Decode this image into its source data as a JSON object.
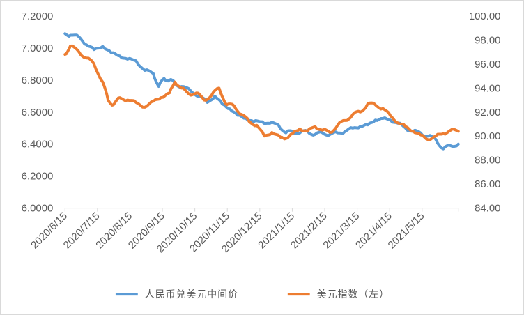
{
  "chart_data": {
    "type": "line",
    "title": "",
    "x_ticks": [
      "2020/6/15",
      "2020/7/15",
      "2020/8/15",
      "2020/9/15",
      "2020/10/15",
      "2020/11/15",
      "2020/12/15",
      "2021/1/15",
      "2021/2/15",
      "2021/3/15",
      "2021/4/15",
      "2021/5/15"
    ],
    "left_axis": {
      "ticks": [
        "6.0000",
        "6.2000",
        "6.4000",
        "6.6000",
        "6.8000",
        "7.0000",
        "7.2000"
      ],
      "min": 6.0,
      "max": 7.2
    },
    "right_axis": {
      "ticks": [
        "84.00",
        "86.00",
        "88.00",
        "90.00",
        "92.00",
        "94.00",
        "96.00",
        "98.00",
        "100.00"
      ],
      "min": 84,
      "max": 100
    },
    "legend_position": "bottom",
    "grid": false,
    "series": [
      {
        "name": "人民币兑美元中间价",
        "axis": "left",
        "color": "#5B9BD5",
        "x": [
          "2020-06-15",
          "2020-06-20",
          "2020-06-28",
          "2020-07-05",
          "2020-07-12",
          "2020-07-20",
          "2020-07-28",
          "2020-08-05",
          "2020-08-12",
          "2020-08-20",
          "2020-08-28",
          "2020-09-05",
          "2020-09-10",
          "2020-09-15",
          "2020-09-20",
          "2020-09-25",
          "2020-10-01",
          "2020-10-10",
          "2020-10-18",
          "2020-10-25",
          "2020-11-01",
          "2020-11-08",
          "2020-11-15",
          "2020-11-22",
          "2020-11-30",
          "2020-12-07",
          "2020-12-15",
          "2020-12-22",
          "2020-12-30",
          "2021-01-06",
          "2021-01-12",
          "2021-01-19",
          "2021-01-26",
          "2021-02-02",
          "2021-02-09",
          "2021-02-16",
          "2021-02-23",
          "2021-03-02",
          "2021-03-09",
          "2021-03-16",
          "2021-03-23",
          "2021-03-30",
          "2021-04-06",
          "2021-04-13",
          "2021-04-20",
          "2021-04-27",
          "2021-05-04",
          "2021-05-11",
          "2021-05-18",
          "2021-05-25",
          "2021-06-01",
          "2021-06-08",
          "2021-06-15"
        ],
        "values": [
          7.09,
          7.08,
          7.07,
          7.02,
          6.99,
          7.01,
          6.97,
          6.95,
          6.93,
          6.92,
          6.86,
          6.84,
          6.76,
          6.81,
          6.8,
          6.78,
          6.76,
          6.73,
          6.7,
          6.66,
          6.7,
          6.65,
          6.62,
          6.58,
          6.56,
          6.54,
          6.54,
          6.53,
          6.52,
          6.47,
          6.48,
          6.47,
          6.48,
          6.46,
          6.47,
          6.46,
          6.47,
          6.48,
          6.5,
          6.51,
          6.52,
          6.55,
          6.56,
          6.55,
          6.53,
          6.5,
          6.48,
          6.47,
          6.45,
          6.43,
          6.37,
          6.39,
          6.4
        ]
      },
      {
        "name": "美元指数（左）",
        "axis": "right",
        "color": "#ED7D31",
        "x": [
          "2020-06-15",
          "2020-06-20",
          "2020-06-28",
          "2020-07-05",
          "2020-07-12",
          "2020-07-20",
          "2020-07-25",
          "2020-07-30",
          "2020-08-05",
          "2020-08-12",
          "2020-08-20",
          "2020-08-28",
          "2020-09-05",
          "2020-09-12",
          "2020-09-20",
          "2020-09-25",
          "2020-10-01",
          "2020-10-08",
          "2020-10-15",
          "2020-10-22",
          "2020-10-29",
          "2020-11-05",
          "2020-11-12",
          "2020-11-19",
          "2020-11-26",
          "2020-12-03",
          "2020-12-10",
          "2020-12-17",
          "2020-12-24",
          "2021-01-01",
          "2021-01-06",
          "2021-01-12",
          "2021-01-19",
          "2021-01-26",
          "2021-02-02",
          "2021-02-09",
          "2021-02-16",
          "2021-02-23",
          "2021-03-02",
          "2021-03-09",
          "2021-03-16",
          "2021-03-23",
          "2021-03-30",
          "2021-04-06",
          "2021-04-13",
          "2021-04-20",
          "2021-04-27",
          "2021-05-04",
          "2021-05-11",
          "2021-05-18",
          "2021-05-25",
          "2021-06-01",
          "2021-06-08",
          "2021-06-15"
        ],
        "values": [
          96.8,
          97.5,
          97.0,
          96.5,
          96.0,
          94.5,
          93.0,
          92.6,
          93.2,
          93.0,
          92.8,
          92.4,
          92.9,
          93.2,
          93.6,
          94.5,
          94.0,
          93.5,
          93.6,
          93.0,
          93.4,
          94.0,
          92.6,
          92.5,
          91.8,
          91.2,
          90.9,
          90.0,
          90.3,
          89.9,
          89.8,
          90.2,
          90.6,
          90.4,
          90.8,
          90.5,
          90.3,
          90.9,
          91.3,
          91.8,
          92.0,
          92.7,
          92.6,
          92.3,
          91.7,
          91.1,
          90.8,
          90.4,
          90.1,
          89.7,
          90.0,
          90.2,
          90.5,
          90.4
        ]
      }
    ]
  }
}
